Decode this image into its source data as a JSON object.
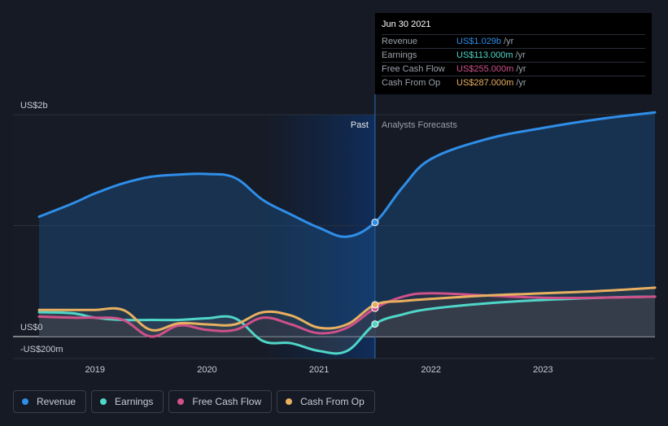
{
  "chart_data": {
    "type": "line",
    "y_tick_labels": [
      "US$2b",
      "US$0",
      "-US$200m"
    ],
    "x_tick_labels": [
      "2019",
      "2020",
      "2021",
      "2022",
      "2023"
    ],
    "ylim": [
      -200,
      2000
    ],
    "xlim": [
      2018.5,
      2024.0
    ],
    "divider_x": 2021.5,
    "past_label": "Past",
    "forecast_label": "Analysts Forecasts",
    "series": [
      {
        "name": "Revenue",
        "color": "#2f8ee8",
        "points": [
          [
            2018.5,
            1080
          ],
          [
            2018.8,
            1200
          ],
          [
            2019.0,
            1290
          ],
          [
            2019.25,
            1380
          ],
          [
            2019.5,
            1440
          ],
          [
            2019.75,
            1460
          ],
          [
            2020.0,
            1465
          ],
          [
            2020.25,
            1430
          ],
          [
            2020.5,
            1230
          ],
          [
            2020.75,
            1100
          ],
          [
            2021.0,
            980
          ],
          [
            2021.25,
            900
          ],
          [
            2021.5,
            1029
          ],
          [
            2021.75,
            1350
          ],
          [
            2022.0,
            1600
          ],
          [
            2022.5,
            1780
          ],
          [
            2023.0,
            1880
          ],
          [
            2023.5,
            1960
          ],
          [
            2024.0,
            2020
          ]
        ]
      },
      {
        "name": "Earnings",
        "color": "#4fd6c8",
        "points": [
          [
            2018.5,
            220
          ],
          [
            2018.8,
            210
          ],
          [
            2019.0,
            170
          ],
          [
            2019.25,
            150
          ],
          [
            2019.5,
            150
          ],
          [
            2019.75,
            150
          ],
          [
            2020.0,
            165
          ],
          [
            2020.25,
            165
          ],
          [
            2020.5,
            -40
          ],
          [
            2020.75,
            -60
          ],
          [
            2021.0,
            -130
          ],
          [
            2021.25,
            -130
          ],
          [
            2021.5,
            113
          ],
          [
            2021.75,
            200
          ],
          [
            2022.0,
            250
          ],
          [
            2022.5,
            300
          ],
          [
            2023.0,
            330
          ],
          [
            2023.5,
            350
          ],
          [
            2024.0,
            360
          ]
        ]
      },
      {
        "name": "Free Cash Flow",
        "color": "#d0508a",
        "points": [
          [
            2018.5,
            180
          ],
          [
            2018.8,
            170
          ],
          [
            2019.0,
            170
          ],
          [
            2019.25,
            150
          ],
          [
            2019.5,
            0
          ],
          [
            2019.75,
            100
          ],
          [
            2020.0,
            60
          ],
          [
            2020.25,
            60
          ],
          [
            2020.5,
            170
          ],
          [
            2020.75,
            110
          ],
          [
            2021.0,
            30
          ],
          [
            2021.25,
            80
          ],
          [
            2021.5,
            255
          ],
          [
            2021.75,
            360
          ],
          [
            2022.0,
            390
          ],
          [
            2022.5,
            370
          ],
          [
            2023.0,
            350
          ],
          [
            2023.5,
            350
          ],
          [
            2024.0,
            360
          ]
        ]
      },
      {
        "name": "Cash From Op",
        "color": "#e8b060",
        "points": [
          [
            2018.5,
            240
          ],
          [
            2018.8,
            240
          ],
          [
            2019.0,
            240
          ],
          [
            2019.25,
            240
          ],
          [
            2019.5,
            60
          ],
          [
            2019.75,
            120
          ],
          [
            2020.0,
            110
          ],
          [
            2020.25,
            110
          ],
          [
            2020.5,
            220
          ],
          [
            2020.75,
            190
          ],
          [
            2021.0,
            80
          ],
          [
            2021.25,
            110
          ],
          [
            2021.5,
            287
          ],
          [
            2021.75,
            320
          ],
          [
            2022.0,
            340
          ],
          [
            2022.5,
            370
          ],
          [
            2023.0,
            390
          ],
          [
            2023.5,
            410
          ],
          [
            2024.0,
            440
          ]
        ]
      }
    ]
  },
  "tooltip": {
    "date": "Jun 30 2021",
    "rows": [
      {
        "label": "Revenue",
        "value": "US$1.029b",
        "unit": "/yr",
        "color": "#2f8ee8"
      },
      {
        "label": "Earnings",
        "value": "US$113.000m",
        "unit": "/yr",
        "color": "#4fd6c8"
      },
      {
        "label": "Free Cash Flow",
        "value": "US$255.000m",
        "unit": "/yr",
        "color": "#d0508a"
      },
      {
        "label": "Cash From Op",
        "value": "US$287.000m",
        "unit": "/yr",
        "color": "#e8b060"
      }
    ]
  },
  "legend": [
    {
      "label": "Revenue",
      "color": "#2f8ee8"
    },
    {
      "label": "Earnings",
      "color": "#4fd6c8"
    },
    {
      "label": "Free Cash Flow",
      "color": "#d0508a"
    },
    {
      "label": "Cash From Op",
      "color": "#e8b060"
    }
  ]
}
